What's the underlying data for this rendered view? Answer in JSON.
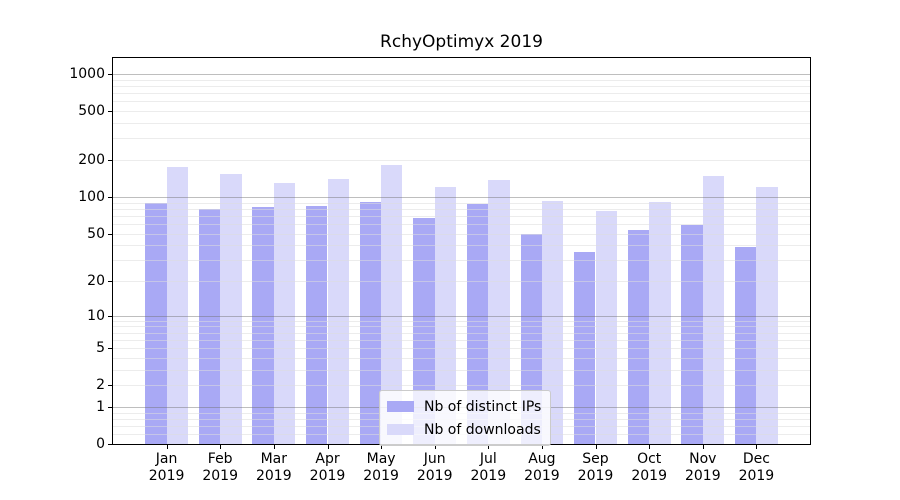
{
  "figure": {
    "title": "RchyOptimyx 2019",
    "background": "#ffffff"
  },
  "chart_data": {
    "type": "bar",
    "title": "RchyOptimyx 2019",
    "categories": [
      {
        "month": "Jan",
        "year": "2019"
      },
      {
        "month": "Feb",
        "year": "2019"
      },
      {
        "month": "Mar",
        "year": "2019"
      },
      {
        "month": "Apr",
        "year": "2019"
      },
      {
        "month": "May",
        "year": "2019"
      },
      {
        "month": "Jun",
        "year": "2019"
      },
      {
        "month": "Jul",
        "year": "2019"
      },
      {
        "month": "Aug",
        "year": "2019"
      },
      {
        "month": "Sep",
        "year": "2019"
      },
      {
        "month": "Oct",
        "year": "2019"
      },
      {
        "month": "Nov",
        "year": "2019"
      },
      {
        "month": "Dec",
        "year": "2019"
      }
    ],
    "series": [
      {
        "name": "Nb of distinct IPs",
        "color": "#a9a9f5",
        "values": [
          89,
          79,
          83,
          84,
          91,
          67,
          88,
          50,
          35,
          53,
          59,
          39
        ]
      },
      {
        "name": "Nb of downloads",
        "color": "#d9d9fa",
        "values": [
          177,
          154,
          130,
          140,
          184,
          121,
          138,
          93,
          76,
          91,
          149,
          120
        ]
      }
    ],
    "y_axis": {
      "scale": "log1p",
      "tick_values": [
        0,
        1,
        2,
        5,
        10,
        20,
        50,
        100,
        200,
        500,
        1000
      ],
      "major_gridlines": [
        1,
        10,
        100,
        1000
      ],
      "minor_gridlines": [
        0.2,
        0.4,
        0.6,
        0.8,
        2,
        3,
        4,
        5,
        6,
        7,
        8,
        9,
        20,
        30,
        40,
        50,
        60,
        70,
        80,
        90,
        200,
        300,
        400,
        500,
        600,
        700,
        800,
        900
      ],
      "range": [
        0,
        1350
      ]
    },
    "xlabel": "",
    "ylabel": "",
    "grid": true,
    "legend": {
      "position": "lower center",
      "entries": [
        "Nb of distinct IPs",
        "Nb of downloads"
      ]
    }
  },
  "colors": {
    "spine": "#000000",
    "text": "#000000",
    "major_grid": "#8f8f8f",
    "minor_grid": "#e6e6e6"
  }
}
